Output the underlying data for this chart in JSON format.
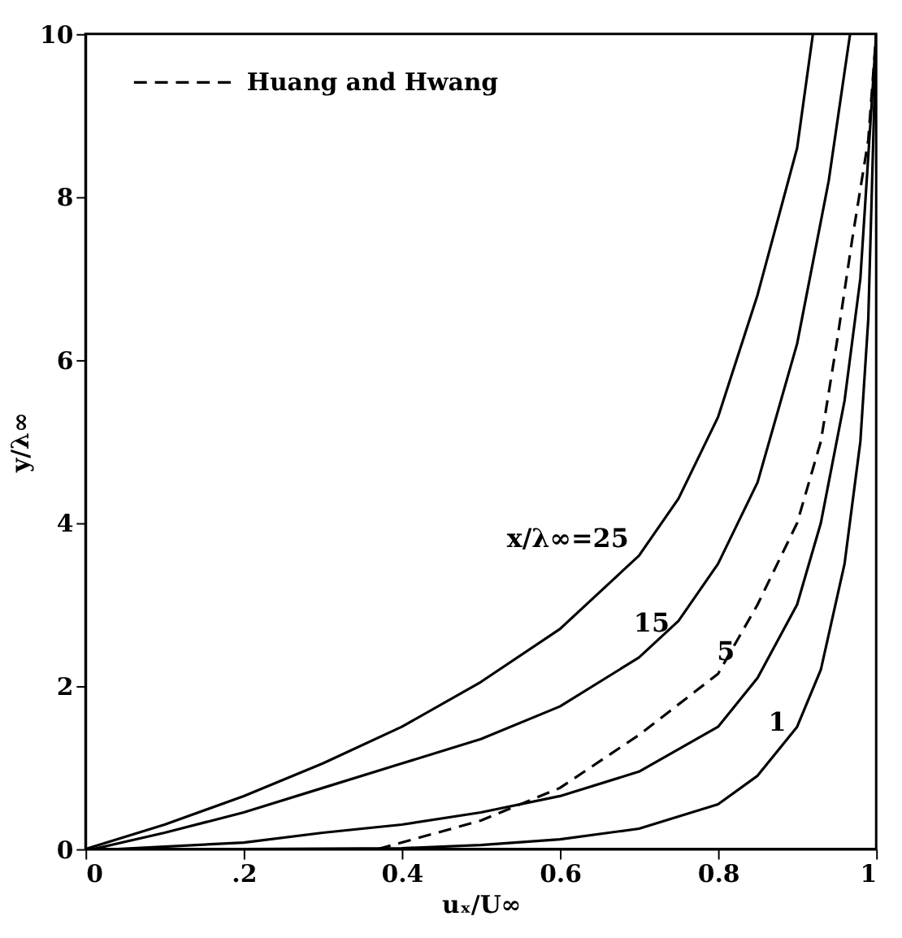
{
  "chart_data": {
    "type": "line",
    "xlabel": "uₓ/U∞",
    "ylabel": "y/λ∞",
    "xlim": [
      0,
      1
    ],
    "ylim": [
      0,
      10
    ],
    "xticks": [
      0,
      {
        "value": 0.2,
        "label": ".2"
      },
      0.4,
      0.6,
      0.8,
      1
    ],
    "yticks": [
      0,
      2,
      4,
      6,
      8,
      10
    ],
    "grid": false,
    "legend": "top left",
    "marker": "none",
    "series": [
      {
        "color": "#000000",
        "line_style": "solid",
        "x": [
          0,
          0.1,
          0.2,
          0.3,
          0.4,
          0.5,
          0.6,
          0.7,
          0.75,
          0.8,
          0.85,
          0.9,
          0.92
        ],
        "values": [
          0,
          0.3,
          0.65,
          1.05,
          1.5,
          2.05,
          2.7,
          3.6,
          4.3,
          5.3,
          6.8,
          8.6,
          10
        ]
      },
      {
        "color": "#000000",
        "line_style": "solid",
        "x": [
          0.01,
          0.1,
          0.2,
          0.3,
          0.4,
          0.5,
          0.6,
          0.7,
          0.75,
          0.8,
          0.85,
          0.9,
          0.94,
          0.967
        ],
        "values": [
          0,
          0.2,
          0.45,
          0.75,
          1.05,
          1.35,
          1.75,
          2.35,
          2.8,
          3.5,
          4.5,
          6.2,
          8.2,
          10
        ]
      },
      {
        "color": "#000000",
        "line_style": "solid",
        "x": [
          0.04,
          0.2,
          0.3,
          0.4,
          0.5,
          0.6,
          0.7,
          0.8,
          0.85,
          0.9,
          0.93,
          0.96,
          0.98,
          0.99,
          1.0
        ],
        "values": [
          0,
          0.08,
          0.2,
          0.3,
          0.45,
          0.65,
          0.95,
          1.5,
          2.1,
          3.0,
          4.0,
          5.5,
          7,
          8.5,
          10
        ]
      },
      {
        "color": "#000000",
        "line_style": "solid",
        "x": [
          0.2,
          0.4,
          0.5,
          0.6,
          0.7,
          0.8,
          0.85,
          0.9,
          0.93,
          0.96,
          0.98,
          0.99,
          1.0
        ],
        "values": [
          0,
          0.01,
          0.05,
          0.12,
          0.25,
          0.55,
          0.9,
          1.5,
          2.2,
          3.5,
          5.0,
          6.5,
          10
        ]
      },
      {
        "name": "Huang and Hwang",
        "color": "#000000",
        "line_style": "dashed",
        "x": [
          0.37,
          0.4,
          0.5,
          0.6,
          0.7,
          0.8,
          0.85,
          0.9,
          0.93,
          0.95,
          0.97,
          0.99,
          1.0
        ],
        "values": [
          0,
          0.08,
          0.35,
          0.75,
          1.4,
          2.15,
          3.0,
          4.0,
          5.0,
          6.2,
          7.5,
          8.7,
          10
        ]
      }
    ],
    "annotations": [
      "x/λ∞=25",
      "15",
      "5",
      "1"
    ]
  }
}
